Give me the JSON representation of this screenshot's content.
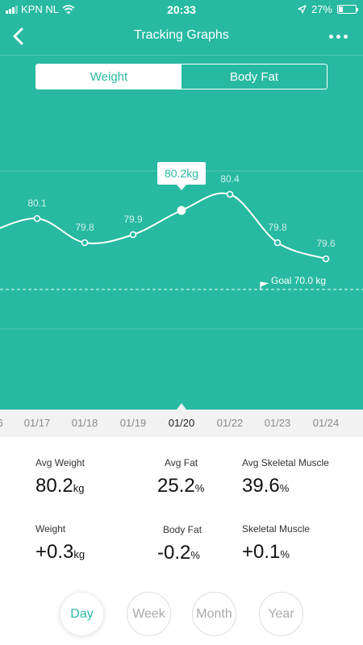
{
  "status_bar": {
    "carrier": "KPN NL",
    "time": "20:33",
    "battery": "27%",
    "battery_level": 0.27
  },
  "nav": {
    "title": "Tracking Graphs"
  },
  "tabs": [
    {
      "label": "Weight",
      "active": true
    },
    {
      "label": "Body Fat",
      "active": false
    }
  ],
  "chart_data": {
    "type": "line",
    "x": [
      "01/17",
      "01/18",
      "01/19",
      "01/20",
      "01/22",
      "01/23",
      "01/24"
    ],
    "values": [
      80.1,
      79.8,
      79.9,
      80.2,
      80.4,
      79.8,
      79.6
    ],
    "point_labels": [
      "80.1",
      "79.8",
      "79.9",
      "80.2kg",
      "80.4",
      "79.8",
      "79.6"
    ],
    "selected": "01/20",
    "goal_label": "Goal 70.0 kg",
    "grid": true,
    "line_color": "#ffffff",
    "background": "#27b9a2"
  },
  "dates": {
    "partial": "6",
    "items": [
      "01/17",
      "01/18",
      "01/19",
      "01/20",
      "01/22",
      "01/23",
      "01/24"
    ],
    "selected": "01/20"
  },
  "summary": {
    "avg_weight": {
      "label": "Avg Weight",
      "value": "80.2",
      "unit": "kg"
    },
    "avg_fat": {
      "label": "Avg Fat",
      "value": "25.2",
      "unit": "%"
    },
    "avg_skeletal": {
      "label": "Avg Skeletal Muscle",
      "value": "39.6",
      "unit": "%"
    },
    "weight_change": {
      "label": "Weight",
      "value": "+0.3",
      "unit": "kg"
    },
    "fat_change": {
      "label": "Body Fat",
      "value": "-0.2",
      "unit": "%"
    },
    "skeletal_change": {
      "label": "Skeletal Muscle",
      "value": "+0.1",
      "unit": "%"
    }
  },
  "periods": [
    "Day",
    "Week",
    "Month",
    "Year"
  ],
  "period_active": "Day",
  "colors": {
    "accent": "#27b9a2",
    "date_bar": "#f2f2f2"
  }
}
